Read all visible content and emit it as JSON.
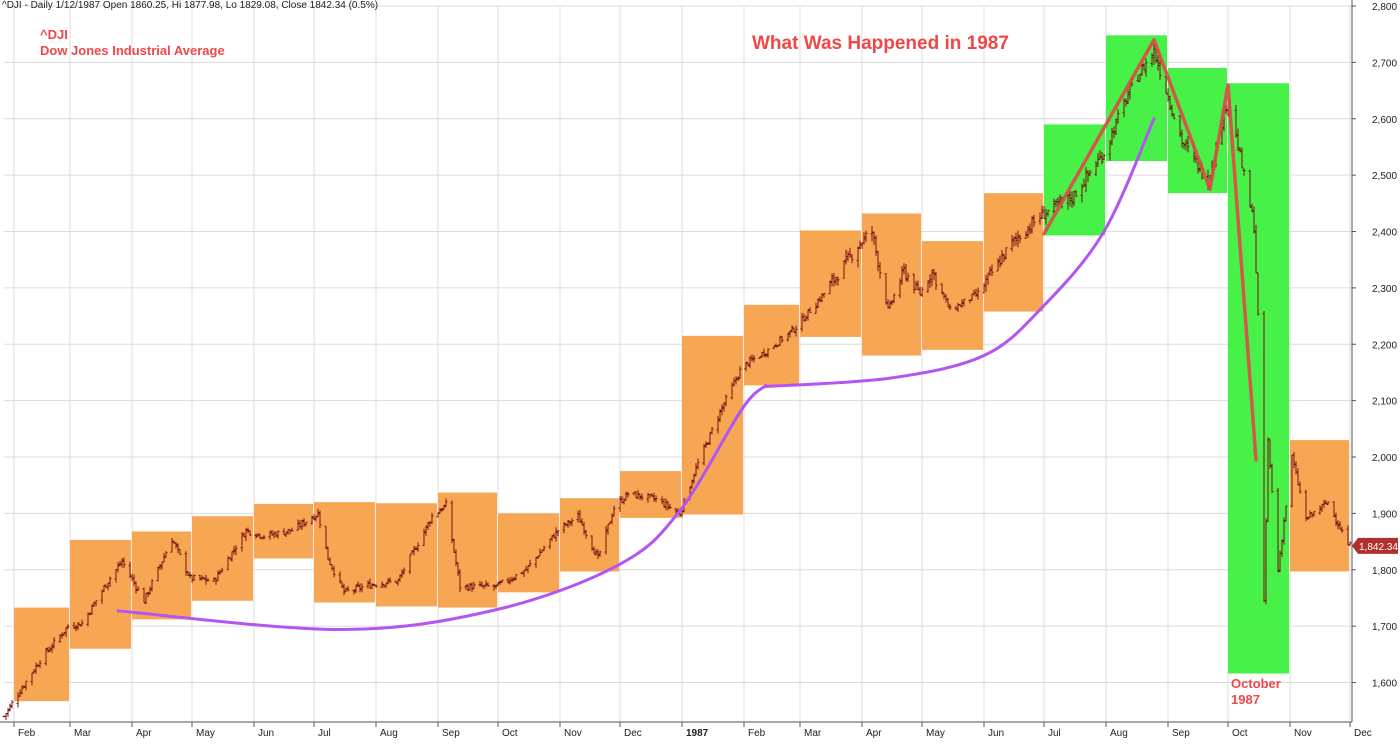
{
  "header": {
    "info": "^DJI - Daily 1/12/1987 Open 1860.25, Hi 1877.98, Lo 1829.08, Close 1842.34 (0.5%)",
    "symbol": "^DJI",
    "name": "Dow Jones Industrial Average",
    "title": "What Was Happened in 1987"
  },
  "annotation": {
    "line1": "October",
    "line2": "1987"
  },
  "last_price_label": "1,842.34",
  "colors": {
    "price_bar": "#7a1010",
    "monthly_box": "#f7a24a",
    "highlight_box": "#3ef03e",
    "trend_curve": "#b355f0",
    "swing_line": "#e04848",
    "annotation_text": "#f04848",
    "last_price_badge": "#b03030",
    "grid": "#dcdcdc"
  },
  "chart_data": {
    "type": "candlestick",
    "title": "What Was Happened in 1987",
    "xlabel": "",
    "ylabel": "",
    "ylim": [
      1530,
      2800
    ],
    "y_ticks": [
      1600,
      1700,
      1800,
      1900,
      2000,
      2100,
      2200,
      2300,
      2400,
      2500,
      2600,
      2700,
      2800
    ],
    "y_tick_labels": [
      "1,600",
      "1,700",
      "1,800",
      "1,900",
      "2,000",
      "2,100",
      "2,200",
      "2,300",
      "2,400",
      "2,500",
      "2,600",
      "2,700",
      "2,800"
    ],
    "x_range": [
      "1986-01-27",
      "1987-12-02"
    ],
    "x_ticks": [
      {
        "label": "Feb",
        "date": "1986-02-01"
      },
      {
        "label": "Mar",
        "date": "1986-03-01"
      },
      {
        "label": "Apr",
        "date": "1986-04-01"
      },
      {
        "label": "May",
        "date": "1986-05-01"
      },
      {
        "label": "Jun",
        "date": "1986-06-01"
      },
      {
        "label": "Jul",
        "date": "1986-07-01"
      },
      {
        "label": "Aug",
        "date": "1986-08-01"
      },
      {
        "label": "Sep",
        "date": "1986-09-01"
      },
      {
        "label": "Oct",
        "date": "1986-10-01"
      },
      {
        "label": "Nov",
        "date": "1986-11-01"
      },
      {
        "label": "Dec",
        "date": "1986-12-01"
      },
      {
        "label": "1987",
        "date": "1987-01-01",
        "bold": true
      },
      {
        "label": "Feb",
        "date": "1987-02-01"
      },
      {
        "label": "Mar",
        "date": "1987-03-01"
      },
      {
        "label": "Apr",
        "date": "1987-04-01"
      },
      {
        "label": "May",
        "date": "1987-05-01"
      },
      {
        "label": "Jun",
        "date": "1987-06-01"
      },
      {
        "label": "Jul",
        "date": "1987-07-01"
      },
      {
        "label": "Aug",
        "date": "1987-08-01"
      },
      {
        "label": "Sep",
        "date": "1987-09-01"
      },
      {
        "label": "Oct",
        "date": "1987-10-01"
      },
      {
        "label": "Nov",
        "date": "1987-11-01"
      },
      {
        "label": "Dec",
        "date": "1987-12-01"
      }
    ],
    "monthly_ranges": [
      {
        "month": "1986-02",
        "low": 1567,
        "high": 1733,
        "highlight": false
      },
      {
        "month": "1986-03",
        "low": 1660,
        "high": 1853,
        "highlight": false
      },
      {
        "month": "1986-04",
        "low": 1712,
        "high": 1868,
        "highlight": false
      },
      {
        "month": "1986-05",
        "low": 1745,
        "high": 1895,
        "highlight": false
      },
      {
        "month": "1986-06",
        "low": 1820,
        "high": 1917,
        "highlight": false
      },
      {
        "month": "1986-07",
        "low": 1742,
        "high": 1920,
        "highlight": false
      },
      {
        "month": "1986-08",
        "low": 1735,
        "high": 1918,
        "highlight": false
      },
      {
        "month": "1986-09",
        "low": 1733,
        "high": 1937,
        "highlight": false
      },
      {
        "month": "1986-10",
        "low": 1760,
        "high": 1900,
        "highlight": false
      },
      {
        "month": "1986-11",
        "low": 1797,
        "high": 1927,
        "highlight": false
      },
      {
        "month": "1986-12",
        "low": 1892,
        "high": 1975,
        "highlight": false
      },
      {
        "month": "1987-01",
        "low": 1898,
        "high": 2215,
        "highlight": false
      },
      {
        "month": "1987-02",
        "low": 2127,
        "high": 2270,
        "highlight": false
      },
      {
        "month": "1987-03",
        "low": 2213,
        "high": 2402,
        "highlight": false
      },
      {
        "month": "1987-04",
        "low": 2180,
        "high": 2432,
        "highlight": false
      },
      {
        "month": "1987-05",
        "low": 2190,
        "high": 2383,
        "highlight": false
      },
      {
        "month": "1987-06",
        "low": 2258,
        "high": 2468,
        "highlight": false
      },
      {
        "month": "1987-07",
        "low": 2393,
        "high": 2590,
        "highlight": true
      },
      {
        "month": "1987-08",
        "low": 2525,
        "high": 2748,
        "highlight": true
      },
      {
        "month": "1987-09",
        "low": 2468,
        "high": 2690,
        "highlight": true
      },
      {
        "month": "1987-10",
        "low": 1616,
        "high": 2663,
        "highlight": true
      },
      {
        "month": "1987-11",
        "low": 1797,
        "high": 2030,
        "highlight": false
      }
    ],
    "price_path": [
      [
        "1986-01-27",
        1540
      ],
      [
        "1986-02-03",
        1580
      ],
      [
        "1986-02-14",
        1640
      ],
      [
        "1986-02-28",
        1700
      ],
      [
        "1986-03-07",
        1705
      ],
      [
        "1986-03-20",
        1780
      ],
      [
        "1986-03-27",
        1815
      ],
      [
        "1986-04-07",
        1745
      ],
      [
        "1986-04-21",
        1855
      ],
      [
        "1986-04-30",
        1785
      ],
      [
        "1986-05-12",
        1780
      ],
      [
        "1986-05-28",
        1870
      ],
      [
        "1986-06-06",
        1860
      ],
      [
        "1986-06-20",
        1870
      ],
      [
        "1986-07-03",
        1900
      ],
      [
        "1986-07-08",
        1820
      ],
      [
        "1986-07-16",
        1760
      ],
      [
        "1986-07-31",
        1775
      ],
      [
        "1986-08-12",
        1780
      ],
      [
        "1986-08-29",
        1895
      ],
      [
        "1986-09-05",
        1915
      ],
      [
        "1986-09-12",
        1770
      ],
      [
        "1986-09-30",
        1770
      ],
      [
        "1986-10-15",
        1800
      ],
      [
        "1986-10-31",
        1870
      ],
      [
        "1986-11-10",
        1895
      ],
      [
        "1986-11-20",
        1820
      ],
      [
        "1986-11-28",
        1910
      ],
      [
        "1986-12-05",
        1935
      ],
      [
        "1986-12-19",
        1925
      ],
      [
        "1986-12-31",
        1900
      ],
      [
        "1987-01-08",
        1980
      ],
      [
        "1987-01-20",
        2080
      ],
      [
        "1987-01-31",
        2160
      ],
      [
        "1987-02-13",
        2190
      ],
      [
        "1987-02-27",
        2230
      ],
      [
        "1987-03-13",
        2290
      ],
      [
        "1987-03-31",
        2380
      ],
      [
        "1987-04-06",
        2400
      ],
      [
        "1987-04-14",
        2260
      ],
      [
        "1987-04-22",
        2330
      ],
      [
        "1987-04-30",
        2290
      ],
      [
        "1987-05-06",
        2330
      ],
      [
        "1987-05-15",
        2260
      ],
      [
        "1987-05-29",
        2290
      ],
      [
        "1987-06-15",
        2380
      ],
      [
        "1987-06-30",
        2430
      ],
      [
        "1987-07-15",
        2460
      ],
      [
        "1987-07-31",
        2540
      ],
      [
        "1987-08-14",
        2660
      ],
      [
        "1987-08-25",
        2720
      ],
      [
        "1987-09-08",
        2560
      ],
      [
        "1987-09-21",
        2490
      ],
      [
        "1987-10-01",
        2640
      ],
      [
        "1987-10-06",
        2550
      ],
      [
        "1987-10-14",
        2410
      ],
      [
        "1987-10-16",
        2250
      ],
      [
        "1987-10-19",
        1740
      ],
      [
        "1987-10-21",
        2030
      ],
      [
        "1987-10-26",
        1800
      ],
      [
        "1987-11-02",
        2000
      ],
      [
        "1987-11-09",
        1890
      ],
      [
        "1987-11-20",
        1920
      ],
      [
        "1987-11-30",
        1845
      ],
      [
        "1987-12-01",
        1842.34
      ]
    ],
    "last_price": 1842.34,
    "trend_curves": [
      {
        "points": [
          [
            "1986-03-25",
            1727
          ],
          [
            "1986-07-15",
            1694
          ],
          [
            "1986-10-01",
            1730
          ],
          [
            "1986-12-01",
            1810
          ],
          [
            "1986-12-31",
            1905
          ],
          [
            "1987-01-31",
            2085
          ],
          [
            "1987-02-12",
            2127
          ]
        ]
      },
      {
        "points": [
          [
            "1987-02-12",
            2125
          ],
          [
            "1987-04-15",
            2140
          ],
          [
            "1987-06-01",
            2180
          ],
          [
            "1987-06-30",
            2265
          ],
          [
            "1987-07-31",
            2400
          ],
          [
            "1987-08-25",
            2600
          ]
        ]
      }
    ],
    "swing_lines": [
      {
        "points": [
          [
            "1987-07-01",
            2396
          ],
          [
            "1987-08-25",
            2740
          ],
          [
            "1987-09-22",
            2475
          ],
          [
            "1987-10-01",
            2660
          ],
          [
            "1987-10-15",
            1995
          ]
        ]
      }
    ],
    "annotations": [
      {
        "text": "October 1987",
        "date": "1987-10-15"
      }
    ]
  }
}
